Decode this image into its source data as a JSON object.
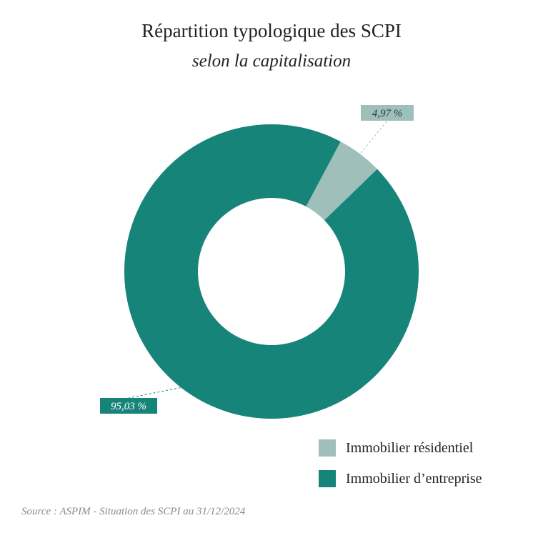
{
  "chart_data": {
    "type": "pie",
    "variant": "donut",
    "title": "Répartition typologique des SCPI",
    "subtitle": "selon la capitalisation",
    "slices": [
      {
        "name": "Immobilier résidentiel",
        "value": 4.97,
        "label": "4,97 %",
        "color": "#9fbfbb"
      },
      {
        "name": "Immobilier d’entreprise",
        "value": 95.03,
        "label": "95,03 %",
        "color": "#17847a"
      }
    ],
    "legend_position": "bottom-right"
  },
  "source": "Source : ASPIM - Situation des SCPI au 31/12/2024"
}
